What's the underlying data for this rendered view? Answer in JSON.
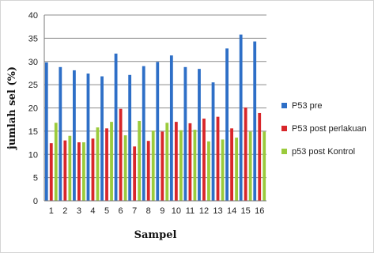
{
  "chart_data": {
    "type": "bar",
    "title": "",
    "xlabel": "Sampel",
    "ylabel": "jumlah sel (%)",
    "ylim": [
      0,
      40
    ],
    "yticks": [
      0,
      5,
      10,
      15,
      20,
      25,
      30,
      35,
      40
    ],
    "grid": true,
    "legend_position": "right",
    "categories": [
      "1",
      "2",
      "3",
      "4",
      "5",
      "6",
      "7",
      "8",
      "9",
      "10",
      "11",
      "12",
      "13",
      "14",
      "15",
      "16"
    ],
    "series": [
      {
        "name": "P53 pre",
        "color": "#2E6FC7",
        "values": [
          29.8,
          28.8,
          28.1,
          27.4,
          26.8,
          31.7,
          27.1,
          29.0,
          29.9,
          31.3,
          28.8,
          28.4,
          25.5,
          32.8,
          35.8,
          34.3
        ]
      },
      {
        "name": "P53 post perlakuan",
        "color": "#D8262A",
        "values": [
          12.4,
          13.0,
          12.6,
          13.4,
          15.6,
          19.8,
          11.7,
          12.9,
          14.9,
          17.0,
          16.7,
          17.7,
          18.1,
          15.6,
          20.1,
          18.9
        ]
      },
      {
        "name": "p53 post Kontrol",
        "color": "#9BCB3C",
        "values": [
          16.8,
          14.0,
          12.6,
          15.8,
          17.0,
          14.1,
          17.2,
          15.1,
          16.8,
          15.2,
          15.3,
          12.8,
          13.2,
          13.6,
          14.9,
          14.9
        ]
      }
    ]
  }
}
